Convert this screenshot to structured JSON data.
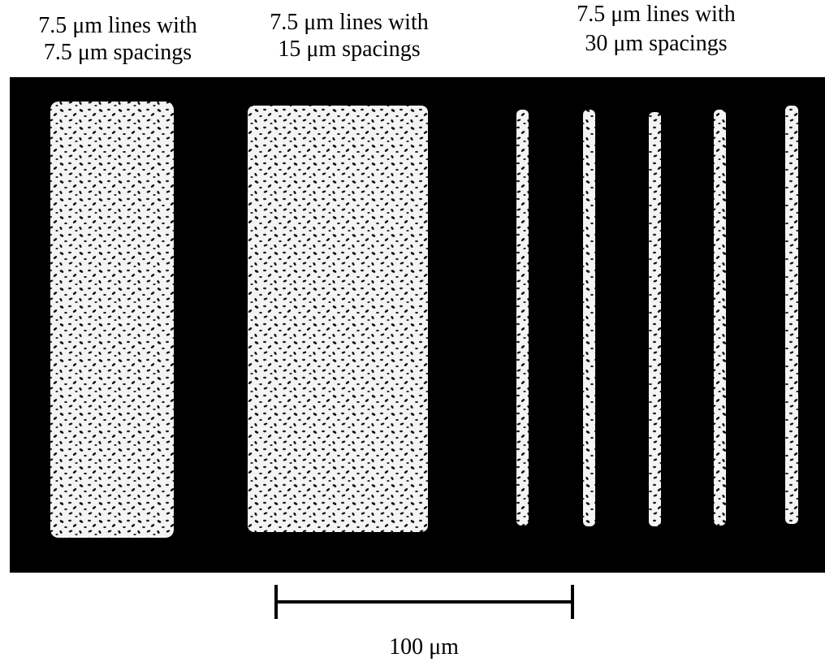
{
  "labels": [
    {
      "lines": [
        "7.5 μm lines with",
        "7.5 μm spacings"
      ]
    },
    {
      "lines": [
        "7.5 μm lines with",
        "15 μm spacings"
      ]
    },
    {
      "lines": [
        "7.5 μm lines with",
        "30 μm spacings"
      ]
    }
  ],
  "scale_bar": {
    "label": "100 μm"
  }
}
